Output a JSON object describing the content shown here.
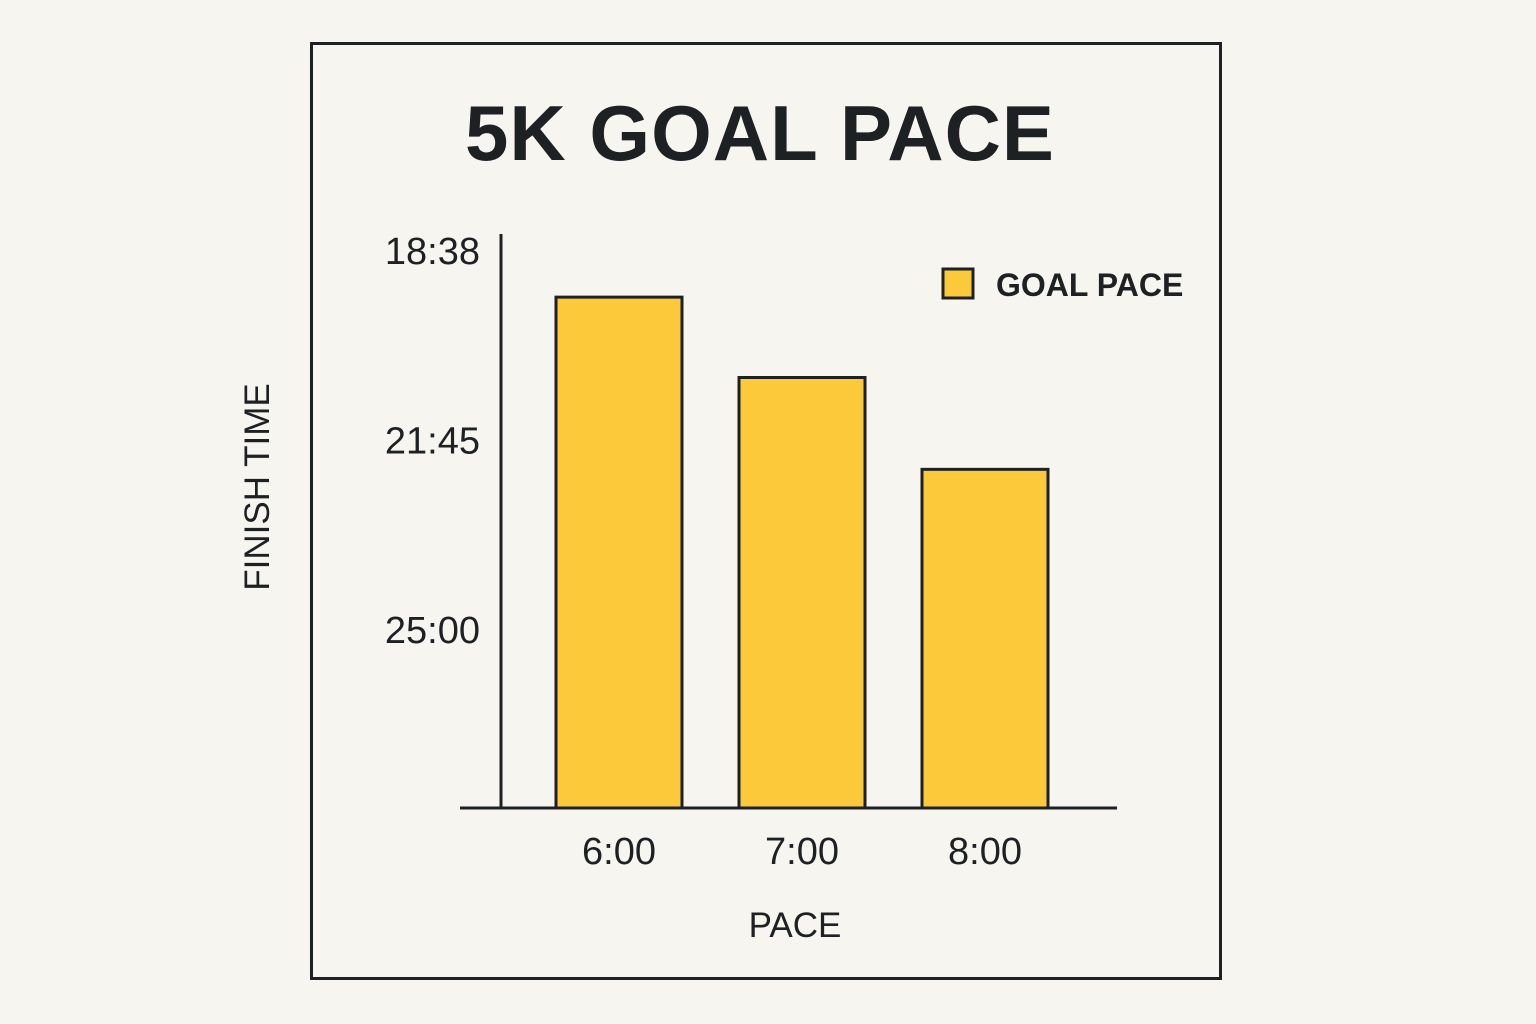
{
  "chart_data": {
    "type": "bar",
    "title": "5K GOAL PACE",
    "xlabel": "PACE",
    "ylabel": "FINISH TIME",
    "categories": [
      "6:00",
      "7:00",
      "8:00"
    ],
    "series": [
      {
        "name": "GOAL PACE",
        "values": [
          0.89,
          0.75,
          0.59
        ]
      }
    ],
    "y_value_unit": "fraction of axis height",
    "yticks": [
      {
        "label": "18:38",
        "value": 0.97
      },
      {
        "label": "21:45",
        "value": 0.64
      },
      {
        "label": "25:00",
        "value": 0.31
      }
    ],
    "ylim": [
      0,
      1
    ],
    "legend_position": "top-right",
    "grid": false,
    "colors": {
      "bar_fill": "#fbc93a",
      "stroke": "#1e2124",
      "background": "#f7f5f0"
    }
  }
}
